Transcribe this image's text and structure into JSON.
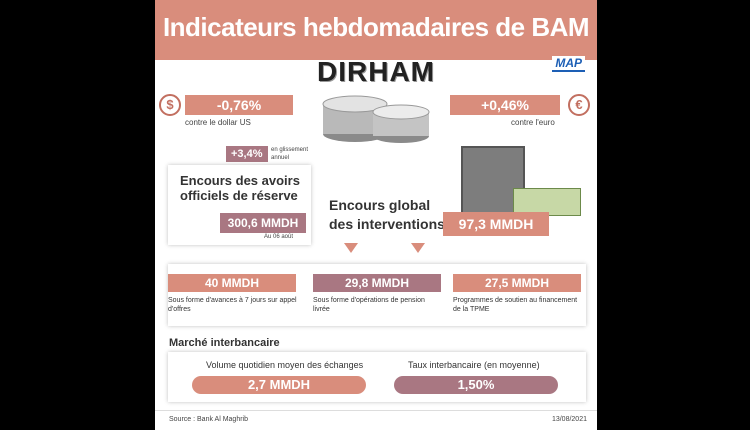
{
  "header": {
    "title": "Indicateurs hebdomadaires de BAM",
    "logo": "MAP"
  },
  "currency": {
    "name": "DIRHAM"
  },
  "dollar": {
    "symbol": "$",
    "change": "-0,76%",
    "caption": "contre le dollar US"
  },
  "euro": {
    "symbol": "€",
    "change": "+0,46%",
    "caption": "contre l'euro"
  },
  "reserves": {
    "annual_change": "+3,4%",
    "annual_change_caption": "en glissement annuel",
    "title": "Encours des avoirs officiels de réserve",
    "value": "300,6 MMDH",
    "date": "Au 06 août"
  },
  "interventions": {
    "title_line1": "Encours global",
    "title_line2": "des interventions",
    "value": "97,3 MMDH"
  },
  "breakdown": [
    {
      "value": "40 MMDH",
      "text": "Sous forme d'avances à 7 jours sur appel d'offres",
      "color": "#d98d7c"
    },
    {
      "value": "29,8 MMDH",
      "text": "Sous forme d'opérations de pension livrée",
      "color": "#a97782"
    },
    {
      "value": "27,5 MMDH",
      "text": "Programmes de soutien au financement de la TPME",
      "color": "#d98d7c"
    }
  ],
  "interbank": {
    "title": "Marché interbancaire",
    "volume_label": "Volume quotidien moyen des échanges",
    "volume_value": "2,7 MMDH",
    "rate_label": "Taux interbancaire (en moyenne)",
    "rate_value": "1,50%"
  },
  "footer": {
    "source": "Source : Bank Al Maghrib",
    "date": "13/08/2021"
  },
  "colors": {
    "accent": "#d98d7c",
    "secondary": "#a97782"
  }
}
